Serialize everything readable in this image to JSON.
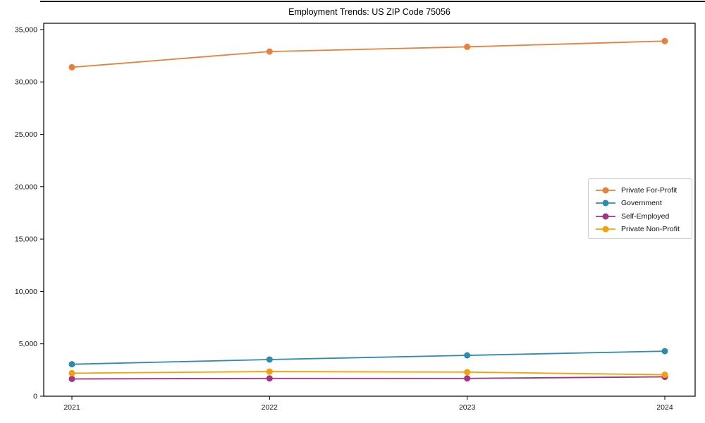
{
  "figure": {
    "title": "Employment Trends: US ZIP Code 75056"
  },
  "chart_data": {
    "type": "line",
    "title": "Employment Trends: US ZIP Code 75056",
    "xlabel": "",
    "ylabel": "",
    "x": [
      2021,
      2022,
      2023,
      2024
    ],
    "xtick_labels": [
      "2021",
      "2022",
      "2023",
      "2024"
    ],
    "yticks": [
      0,
      5000,
      10000,
      15000,
      20000,
      25000,
      30000,
      35000
    ],
    "ytick_labels": [
      "0",
      "5,000",
      "10,000",
      "15,000",
      "20,000",
      "25,000",
      "30,000",
      "35,000"
    ],
    "ylim": [
      0,
      35600
    ],
    "grid": false,
    "legend_position": "center-right",
    "marker": "circle",
    "series": [
      {
        "name": "Private For-Profit",
        "color": "#e8803d",
        "values": [
          31400,
          32900,
          33350,
          33900
        ]
      },
      {
        "name": "Government",
        "color": "#2f8bad",
        "values": [
          3050,
          3500,
          3900,
          4300
        ]
      },
      {
        "name": "Self-Employed",
        "color": "#a23487",
        "values": [
          1650,
          1700,
          1700,
          1850
        ]
      },
      {
        "name": "Private Non-Profit",
        "color": "#f5a004",
        "values": [
          2200,
          2350,
          2300,
          2050
        ]
      }
    ]
  }
}
